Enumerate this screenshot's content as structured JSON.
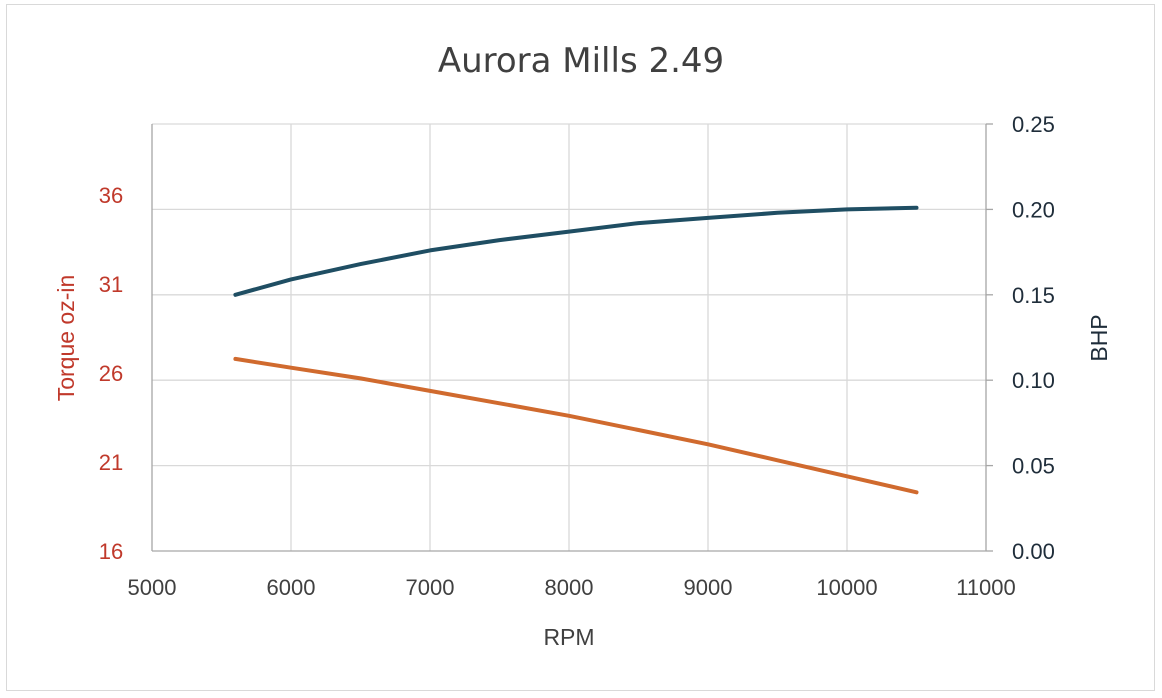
{
  "chart_data": {
    "type": "line",
    "title": "Aurora Mills 2.49",
    "xlabel": "RPM",
    "ylabel_left": "Torque oz-in",
    "ylabel_right": "BHP",
    "xlim": [
      5000,
      11000
    ],
    "ylim_left": [
      16,
      40
    ],
    "ylim_right": [
      0.0,
      0.25
    ],
    "x_ticks": [
      "5000",
      "6000",
      "7000",
      "8000",
      "9000",
      "10000",
      "11000"
    ],
    "y_left_ticks": [
      "16",
      "21",
      "26",
      "31",
      "36"
    ],
    "y_right_ticks": [
      "0.00",
      "0.05",
      "0.10",
      "0.15",
      "0.20",
      "0.25"
    ],
    "grid": true,
    "series": [
      {
        "axis": "right",
        "color": "#1f4e63",
        "x": [
          5600,
          6000,
          6500,
          7000,
          7500,
          8000,
          8500,
          9000,
          9500,
          10000,
          10500
        ],
        "values": [
          0.15,
          0.159,
          0.168,
          0.176,
          0.182,
          0.187,
          0.192,
          0.195,
          0.198,
          0.2,
          0.201
        ]
      },
      {
        "axis": "left",
        "color": "#d06a2e",
        "x": [
          5600,
          6000,
          6500,
          7000,
          7500,
          8000,
          8500,
          9000,
          9500,
          10000,
          10500
        ],
        "values": [
          26.8,
          26.3,
          25.7,
          25.0,
          24.3,
          23.6,
          22.8,
          22.0,
          21.1,
          20.2,
          19.3
        ]
      }
    ]
  },
  "colors": {
    "left_axis": "#c0392b",
    "right_axis": "#1f2d3a",
    "grid": "#d9d9d9",
    "axis_line": "#a6a6a6",
    "x_axis_text": "#404040"
  }
}
